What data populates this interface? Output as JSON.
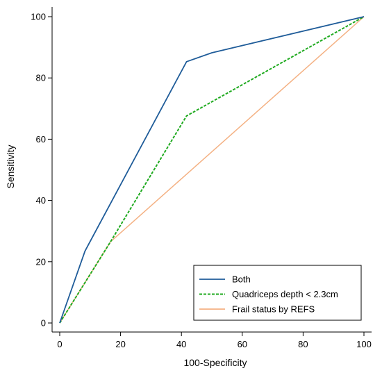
{
  "chart_data": {
    "type": "line",
    "title": "",
    "xlabel": "100-Specificity",
    "ylabel": "Sensitivity",
    "xlim": [
      0,
      100
    ],
    "ylim": [
      0,
      100
    ],
    "xticks": [
      0,
      20,
      40,
      60,
      80,
      100
    ],
    "yticks": [
      0,
      20,
      40,
      60,
      80,
      100
    ],
    "grid": false,
    "legend_position": "bottom-right",
    "series": [
      {
        "name": "Both",
        "color": "#1f5c99",
        "style": "solid",
        "points": [
          [
            0,
            0
          ],
          [
            8.3,
            23.5
          ],
          [
            41.7,
            85.3
          ],
          [
            50,
            88.2
          ],
          [
            100,
            100
          ]
        ]
      },
      {
        "name": "Quadriceps depth < 2.3cm",
        "color": "#1faa1f",
        "style": "dashed",
        "points": [
          [
            0,
            0
          ],
          [
            16.7,
            26.5
          ],
          [
            41.7,
            67.6
          ],
          [
            100,
            100
          ]
        ]
      },
      {
        "name": "Frail status by REFS",
        "color": "#f4b183",
        "style": "solid",
        "points": [
          [
            0,
            0
          ],
          [
            16.7,
            26.5
          ],
          [
            100,
            100
          ]
        ]
      }
    ]
  }
}
